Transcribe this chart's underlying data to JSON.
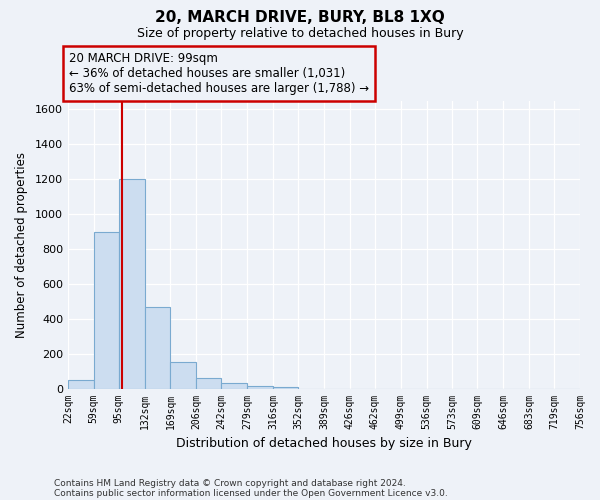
{
  "title": "20, MARCH DRIVE, BURY, BL8 1XQ",
  "subtitle": "Size of property relative to detached houses in Bury",
  "xlabel": "Distribution of detached houses by size in Bury",
  "ylabel": "Number of detached properties",
  "bin_edges": [
    22,
    59,
    95,
    132,
    169,
    206,
    242,
    279,
    316,
    352,
    389,
    426,
    462,
    499,
    536,
    573,
    609,
    646,
    683,
    719,
    756
  ],
  "bar_heights": [
    50,
    900,
    1200,
    470,
    150,
    60,
    30,
    15,
    10,
    0,
    0,
    0,
    0,
    0,
    0,
    0,
    0,
    0,
    0,
    0
  ],
  "bar_color": "#ccddf0",
  "bar_edge_color": "#7aaad0",
  "property_size": 99,
  "red_line_color": "#cc0000",
  "annotation_text": "20 MARCH DRIVE: 99sqm\n← 36% of detached houses are smaller (1,031)\n63% of semi-detached houses are larger (1,788) →",
  "annotation_box_edge_color": "#cc0000",
  "ylim_max": 1650,
  "yticks": [
    0,
    200,
    400,
    600,
    800,
    1000,
    1200,
    1400,
    1600
  ],
  "bg_color": "#eef2f8",
  "grid_color": "#ffffff",
  "footer1": "Contains HM Land Registry data © Crown copyright and database right 2024.",
  "footer2": "Contains public sector information licensed under the Open Government Licence v3.0."
}
